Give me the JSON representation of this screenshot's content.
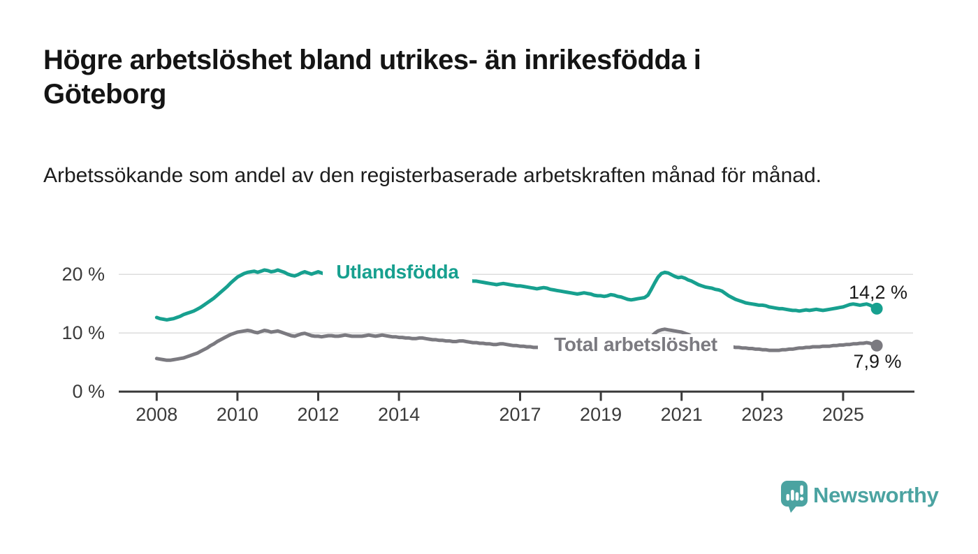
{
  "header": {
    "title": "Högre arbetslöshet bland utrikes- än inrikesfödda i Göteborg",
    "subtitle": "Arbetssökande som andel av den registerbaserade arbetskraften månad för månad."
  },
  "chart_data": {
    "type": "line",
    "title": "Högre arbetslöshet bland utrikes- än inrikesfödda i Göteborg",
    "subtitle": "Arbetssökande som andel av den registerbaserade arbetskraften månad för månad.",
    "x_unit": "month",
    "x_start": "2008-01",
    "x_end": "2025-11",
    "x_tick_years": [
      2008,
      2010,
      2012,
      2014,
      2017,
      2019,
      2021,
      2023,
      2025
    ],
    "x_tick_labels": [
      "2008",
      "2010",
      "2012",
      "2014",
      "2017",
      "2019",
      "2021",
      "2023",
      "2025"
    ],
    "y_tick_labels": [
      "0 %",
      "10 %",
      "20 %"
    ],
    "y_tick_values": [
      0,
      10,
      20
    ],
    "ylim": [
      0,
      24
    ],
    "grid": "horizontal",
    "series": [
      {
        "name": "Utlandsfödda",
        "color": "#17a08f",
        "end_value": 14.2,
        "end_label": "14,2 %",
        "values": [
          12.7,
          12.5,
          12.4,
          12.3,
          12.4,
          12.5,
          12.7,
          12.9,
          13.2,
          13.4,
          13.6,
          13.8,
          14.1,
          14.4,
          14.8,
          15.2,
          15.6,
          16.0,
          16.5,
          17.0,
          17.5,
          18.0,
          18.6,
          19.1,
          19.6,
          19.9,
          20.2,
          20.4,
          20.5,
          20.6,
          20.4,
          20.6,
          20.8,
          20.7,
          20.5,
          20.6,
          20.8,
          20.6,
          20.4,
          20.1,
          19.9,
          19.8,
          20.0,
          20.3,
          20.5,
          20.3,
          20.1,
          20.3,
          20.5,
          20.3,
          20.1,
          20.3,
          20.4,
          20.2,
          20.3,
          20.4,
          20.5,
          20.3,
          20.2,
          20.3,
          20.2,
          20.1,
          20.0,
          20.0,
          19.9,
          19.8,
          19.9,
          19.9,
          19.8,
          19.7,
          19.7,
          19.6,
          19.6,
          19.5,
          19.5,
          19.4,
          19.4,
          19.3,
          19.4,
          19.4,
          19.3,
          19.2,
          19.2,
          19.1,
          19.1,
          19.0,
          19.0,
          19.0,
          18.9,
          18.9,
          19.0,
          19.1,
          19.1,
          19.0,
          18.9,
          18.9,
          18.8,
          18.7,
          18.6,
          18.5,
          18.4,
          18.3,
          18.4,
          18.5,
          18.4,
          18.3,
          18.2,
          18.1,
          18.1,
          18.0,
          17.9,
          17.8,
          17.7,
          17.6,
          17.7,
          17.8,
          17.7,
          17.5,
          17.4,
          17.3,
          17.2,
          17.1,
          17.0,
          16.9,
          16.8,
          16.7,
          16.8,
          16.9,
          16.8,
          16.7,
          16.5,
          16.4,
          16.4,
          16.3,
          16.4,
          16.6,
          16.5,
          16.3,
          16.2,
          16.0,
          15.8,
          15.7,
          15.8,
          15.9,
          16.0,
          16.1,
          16.5,
          17.5,
          18.6,
          19.6,
          20.2,
          20.4,
          20.3,
          20.0,
          19.7,
          19.5,
          19.6,
          19.4,
          19.1,
          18.9,
          18.6,
          18.3,
          18.1,
          17.9,
          17.8,
          17.7,
          17.5,
          17.4,
          17.2,
          16.8,
          16.4,
          16.1,
          15.8,
          15.6,
          15.4,
          15.2,
          15.1,
          15.0,
          14.9,
          14.8,
          14.8,
          14.7,
          14.5,
          14.4,
          14.3,
          14.2,
          14.2,
          14.1,
          14.0,
          13.9,
          13.9,
          13.8,
          13.9,
          14.0,
          13.9,
          14.0,
          14.1,
          14.0,
          13.9,
          14.0,
          14.1,
          14.2,
          14.3,
          14.4,
          14.5,
          14.7,
          14.9,
          15.0,
          14.9,
          14.8,
          14.9,
          15.0,
          14.8,
          14.5,
          14.2
        ]
      },
      {
        "name": "Total arbetslöshet",
        "color": "#7b7a80",
        "end_value": 7.9,
        "end_label": "7,9 %",
        "values": [
          5.7,
          5.6,
          5.5,
          5.4,
          5.4,
          5.5,
          5.6,
          5.7,
          5.8,
          6.0,
          6.2,
          6.4,
          6.6,
          6.9,
          7.2,
          7.5,
          7.9,
          8.2,
          8.6,
          8.9,
          9.2,
          9.5,
          9.8,
          10.0,
          10.2,
          10.3,
          10.4,
          10.5,
          10.4,
          10.2,
          10.1,
          10.3,
          10.5,
          10.4,
          10.2,
          10.3,
          10.4,
          10.2,
          10.0,
          9.8,
          9.6,
          9.5,
          9.7,
          9.9,
          10.0,
          9.8,
          9.6,
          9.5,
          9.5,
          9.4,
          9.5,
          9.6,
          9.6,
          9.5,
          9.5,
          9.6,
          9.7,
          9.6,
          9.5,
          9.5,
          9.5,
          9.5,
          9.6,
          9.7,
          9.6,
          9.5,
          9.6,
          9.7,
          9.6,
          9.5,
          9.4,
          9.4,
          9.3,
          9.3,
          9.2,
          9.2,
          9.1,
          9.1,
          9.2,
          9.2,
          9.1,
          9.0,
          8.9,
          8.9,
          8.8,
          8.8,
          8.7,
          8.7,
          8.6,
          8.6,
          8.7,
          8.7,
          8.6,
          8.5,
          8.4,
          8.4,
          8.3,
          8.3,
          8.2,
          8.2,
          8.1,
          8.1,
          8.2,
          8.2,
          8.1,
          8.0,
          7.9,
          7.9,
          7.8,
          7.8,
          7.7,
          7.7,
          7.6,
          7.6,
          7.6,
          7.7,
          7.6,
          7.5,
          7.4,
          7.4,
          7.3,
          7.3,
          7.2,
          7.2,
          7.2,
          7.1,
          7.2,
          7.2,
          7.2,
          7.1,
          7.1,
          7.1,
          7.1,
          7.0,
          7.0,
          7.1,
          7.1,
          7.1,
          7.2,
          7.2,
          7.2,
          7.3,
          7.3,
          7.4,
          7.5,
          7.6,
          8.2,
          9.4,
          10.0,
          10.4,
          10.6,
          10.7,
          10.6,
          10.5,
          10.4,
          10.3,
          10.2,
          10.0,
          9.8,
          9.5,
          9.2,
          8.9,
          8.7,
          8.5,
          8.3,
          8.1,
          8.0,
          7.9,
          7.8,
          7.8,
          7.7,
          7.7,
          7.6,
          7.6,
          7.5,
          7.5,
          7.4,
          7.4,
          7.3,
          7.3,
          7.2,
          7.2,
          7.1,
          7.1,
          7.1,
          7.1,
          7.2,
          7.2,
          7.3,
          7.3,
          7.4,
          7.5,
          7.5,
          7.6,
          7.6,
          7.7,
          7.7,
          7.7,
          7.8,
          7.8,
          7.8,
          7.9,
          7.9,
          8.0,
          8.0,
          8.1,
          8.1,
          8.2,
          8.2,
          8.3,
          8.3,
          8.4,
          8.3,
          8.1,
          7.9
        ]
      }
    ]
  },
  "footer": {
    "brand": "Newsworthy",
    "brand_color": "#4ba3a1",
    "logo_icon": "speech-bubble-bar-chart-icon"
  }
}
